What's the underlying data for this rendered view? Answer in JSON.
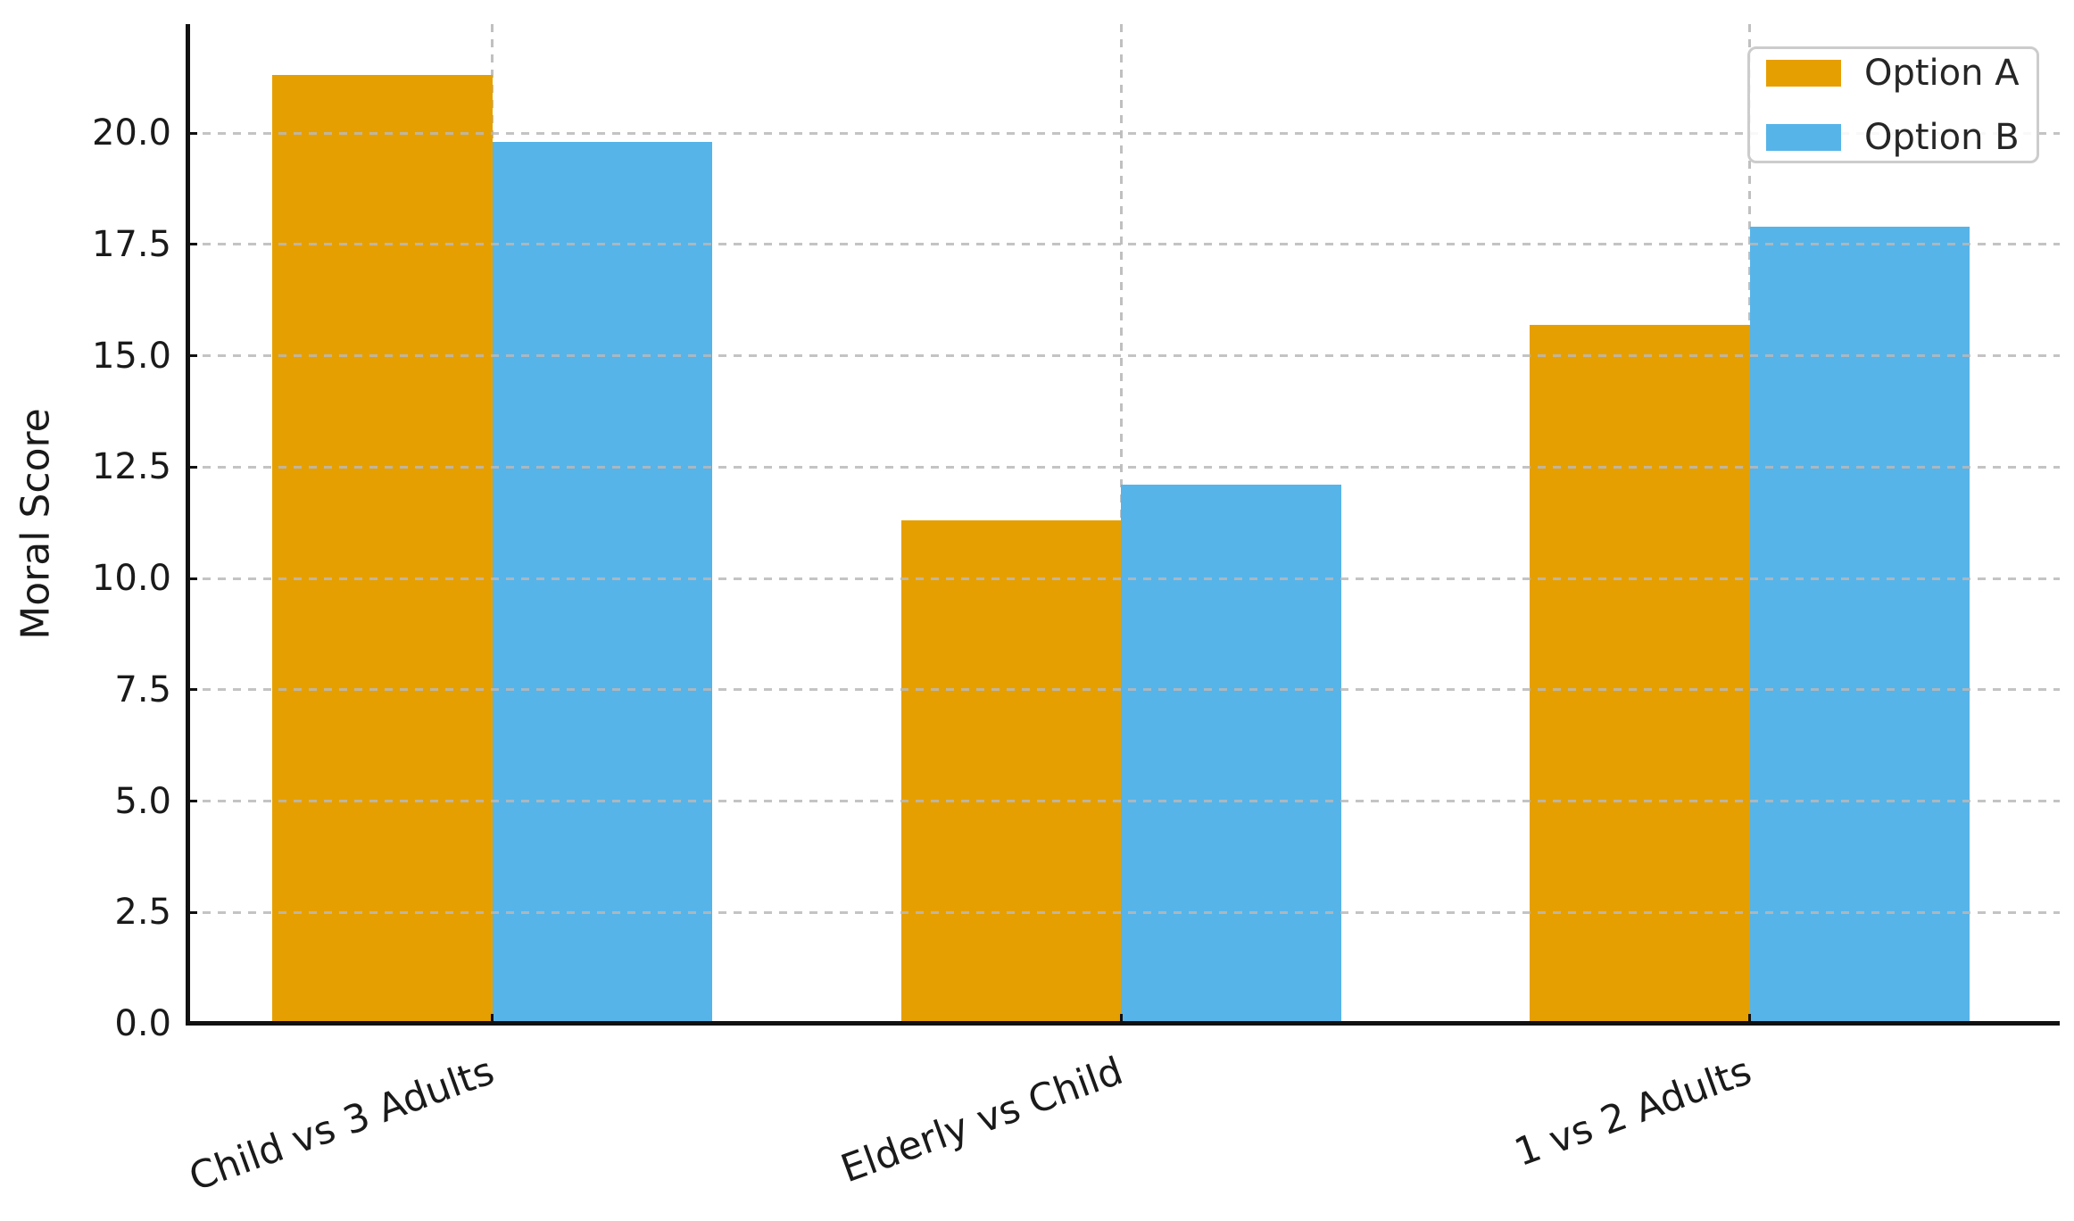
{
  "chart_data": {
    "type": "bar",
    "title": "",
    "xlabel": "",
    "ylabel": "Moral Score",
    "categories": [
      "Child vs 3 Adults",
      "Elderly vs Child",
      "1 vs 2 Adults"
    ],
    "series": [
      {
        "name": "Option A",
        "color": "#E69F00",
        "values": [
          21.3,
          11.3,
          15.7
        ]
      },
      {
        "name": "Option B",
        "color": "#56B4E9",
        "values": [
          19.8,
          12.1,
          17.9
        ]
      }
    ],
    "ylim": [
      0,
      22.45
    ],
    "xlim": [
      -0.485,
      2.493
    ],
    "yticks": [
      0.0,
      2.5,
      5.0,
      7.5,
      10.0,
      12.5,
      15.0,
      17.5,
      20.0
    ],
    "ytick_labels": [
      "0.0",
      "2.5",
      "5.0",
      "7.5",
      "10.0",
      "12.5",
      "15.0",
      "17.5",
      "20.0"
    ],
    "bar_width_fraction": 0.35,
    "xtick_rotation_deg": 20,
    "grid": "dashed gridlines at y-ticks and category centers",
    "legend_position": "upper right",
    "axis_color": "#111111",
    "grid_color": "#cccccc",
    "text_color": "#1a1a1a"
  }
}
